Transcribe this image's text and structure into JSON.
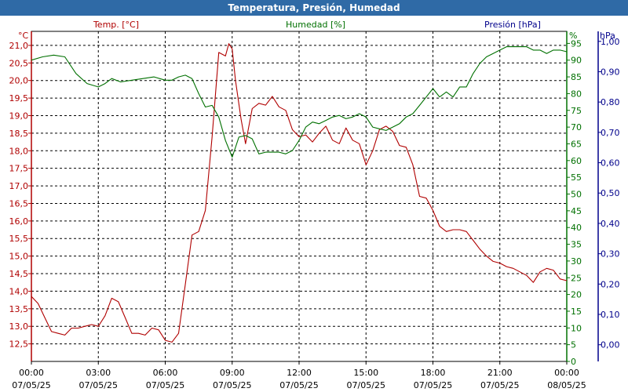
{
  "window": {
    "title": "Temperatura, Presión, Humedad"
  },
  "colors": {
    "temp": "#b00000",
    "hum": "#007000",
    "pres": "#00008b",
    "axis": "#000000"
  },
  "chart_data": {
    "type": "line",
    "title": "Temperatura, Presión, Humedad",
    "legend": {
      "temp": "Temp. [°C]",
      "hum": "Humedad [%]",
      "pres": "Presión [hPa]"
    },
    "units": {
      "temp": "°C",
      "hum": "%",
      "pres": "hPa"
    },
    "x_ticks": [
      {
        "time": "00:00",
        "date": "07/05/25"
      },
      {
        "time": "03:00",
        "date": "07/05/25"
      },
      {
        "time": "06:00",
        "date": "07/05/25"
      },
      {
        "time": "09:00",
        "date": "07/05/25"
      },
      {
        "time": "12:00",
        "date": "07/05/25"
      },
      {
        "time": "15:00",
        "date": "07/05/25"
      },
      {
        "time": "18:00",
        "date": "07/05/25"
      },
      {
        "time": "21:00",
        "date": "07/05/25"
      },
      {
        "time": "00:00",
        "date": "08/05/25"
      }
    ],
    "x_range_hours": [
      0,
      24
    ],
    "temp_axis": {
      "ylim": [
        12.0,
        21.4
      ],
      "ticks": [
        "12,5",
        "13,0",
        "13,5",
        "14,0",
        "14,5",
        "15,0",
        "15,5",
        "16,0",
        "16,5",
        "17,0",
        "17,5",
        "18,0",
        "18,5",
        "19,0",
        "19,5",
        "20,0",
        "20,5",
        "21,0"
      ]
    },
    "hum_axis": {
      "ylim": [
        0,
        98.6
      ],
      "ticks": [
        "0",
        "5",
        "10",
        "15",
        "20",
        "25",
        "30",
        "35",
        "40",
        "45",
        "50",
        "55",
        "60",
        "65",
        "70",
        "75",
        "80",
        "85",
        "90",
        "95"
      ]
    },
    "pres_axis": {
      "ylim": [
        -0.055,
        1.033
      ],
      "ticks": [
        "0,00",
        "0,10",
        "0,20",
        "0,30",
        "0,40",
        "0,50",
        "0,60",
        "0,70",
        "0,80",
        "0,90",
        "1,00"
      ]
    },
    "grid": true,
    "series": [
      {
        "name": "Temp. [°C]",
        "axis": "temp",
        "hours": [
          0,
          0.3,
          0.6,
          0.9,
          1.2,
          1.5,
          1.8,
          2.1,
          2.4,
          2.7,
          3.0,
          3.3,
          3.6,
          3.9,
          4.2,
          4.5,
          4.8,
          5.1,
          5.4,
          5.7,
          6.0,
          6.3,
          6.6,
          6.9,
          7.2,
          7.5,
          7.8,
          8.1,
          8.4,
          8.7,
          8.85,
          9.0,
          9.15,
          9.4,
          9.6,
          9.9,
          10.2,
          10.5,
          10.8,
          11.1,
          11.4,
          11.7,
          12.0,
          12.3,
          12.6,
          12.9,
          13.2,
          13.5,
          13.8,
          14.1,
          14.4,
          14.7,
          15.0,
          15.3,
          15.6,
          15.9,
          16.2,
          16.5,
          16.8,
          17.1,
          17.4,
          17.7,
          18.0,
          18.3,
          18.6,
          18.9,
          19.2,
          19.5,
          19.8,
          20.1,
          20.4,
          20.7,
          21.0,
          21.3,
          21.6,
          21.9,
          22.2,
          22.5,
          22.8,
          23.1,
          23.4,
          23.7,
          24.0
        ],
        "values": [
          13.85,
          13.65,
          13.25,
          12.85,
          12.8,
          12.75,
          12.95,
          12.95,
          13.0,
          13.05,
          13.0,
          13.3,
          13.8,
          13.7,
          13.25,
          12.8,
          12.8,
          12.75,
          12.95,
          12.9,
          12.6,
          12.55,
          12.8,
          14.2,
          15.6,
          15.7,
          16.3,
          18.4,
          20.8,
          20.7,
          21.05,
          20.9,
          20.0,
          18.9,
          18.2,
          19.2,
          19.35,
          19.3,
          19.55,
          19.25,
          19.15,
          18.6,
          18.4,
          18.45,
          18.25,
          18.5,
          18.7,
          18.3,
          18.2,
          18.65,
          18.3,
          18.2,
          17.6,
          18.0,
          18.6,
          18.7,
          18.55,
          18.15,
          18.1,
          17.6,
          16.7,
          16.65,
          16.3,
          15.85,
          15.7,
          15.75,
          15.75,
          15.7,
          15.45,
          15.2,
          15.0,
          14.85,
          14.8,
          14.7,
          14.65,
          14.55,
          14.45,
          14.25,
          14.55,
          14.65,
          14.6,
          14.35,
          14.3
        ]
      },
      {
        "name": "Humedad [%]",
        "axis": "hum",
        "hours": [
          0,
          0.5,
          1.0,
          1.5,
          2.0,
          2.5,
          3.0,
          3.3,
          3.6,
          4.0,
          4.5,
          5.0,
          5.5,
          6.0,
          6.3,
          6.6,
          6.9,
          7.2,
          7.5,
          7.8,
          8.1,
          8.4,
          8.7,
          9.0,
          9.3,
          9.6,
          9.9,
          10.2,
          10.5,
          10.8,
          11.1,
          11.4,
          11.7,
          12.0,
          12.3,
          12.6,
          12.9,
          13.2,
          13.5,
          13.8,
          14.1,
          14.4,
          14.7,
          15.0,
          15.3,
          15.6,
          15.9,
          16.2,
          16.5,
          16.8,
          17.1,
          17.4,
          17.7,
          18.0,
          18.3,
          18.6,
          18.9,
          19.2,
          19.5,
          19.8,
          20.1,
          20.4,
          20.7,
          21.0,
          21.3,
          21.6,
          21.9,
          22.2,
          22.5,
          22.8,
          23.1,
          23.4,
          23.7,
          24.0
        ],
        "values": [
          90,
          91,
          91.5,
          91,
          86,
          83,
          82,
          83,
          84.5,
          83.5,
          84,
          84.5,
          85,
          84,
          84,
          85,
          85.5,
          84.5,
          80,
          76,
          76.5,
          73,
          66,
          61,
          67,
          67.5,
          66.5,
          62,
          62.5,
          62.5,
          62.5,
          62,
          63,
          66,
          70,
          71.5,
          71,
          72,
          73,
          73.5,
          72.5,
          73,
          74,
          73,
          70,
          69.5,
          69,
          70,
          71,
          73,
          74,
          76.5,
          79,
          81.5,
          79,
          80.5,
          79,
          82,
          82,
          86,
          89,
          91,
          92,
          93,
          94,
          94,
          94,
          94,
          93,
          93,
          92,
          93,
          93,
          92.5
        ]
      }
    ]
  }
}
